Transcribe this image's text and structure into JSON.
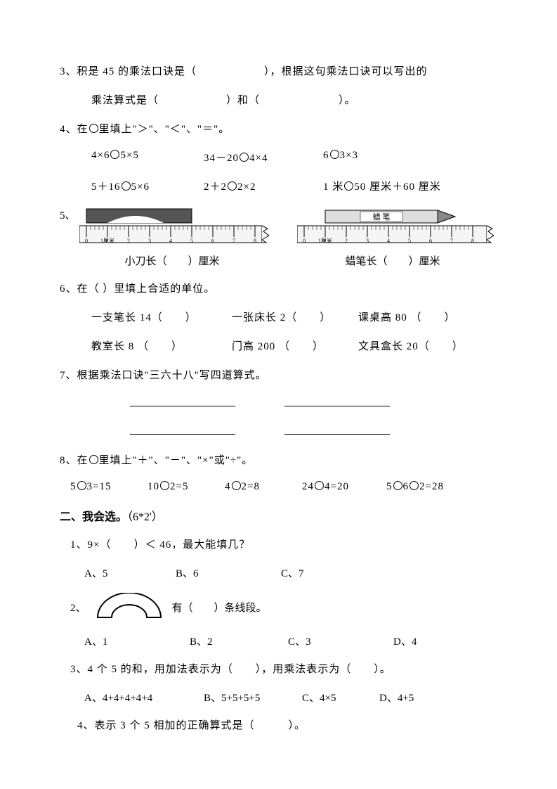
{
  "q3": {
    "text_before": "3、积是 45 的乘法口诀是（",
    "blank1_space": "　　　　　　",
    "text_mid": "），根据这句乘法口诀可以写出的",
    "line2_a": "乘法算式是（",
    "blank2_space": "　　　　　　",
    "line2_b": "）和（",
    "blank3_space": "　　　　　　　",
    "line2_c": "）。"
  },
  "q4": {
    "header": "4、在○里填上\"＞\"、\"＜\"、\"＝\"。",
    "row1": {
      "a": "4×6○5×5",
      "b": "34－20○4×4",
      "c": "6○3×3"
    },
    "row2": {
      "a": "5＋16○5×6",
      "b": "2＋2○2×2",
      "c": "1 米○50 厘米＋60 厘米"
    }
  },
  "q5": {
    "label": "5、",
    "cap1_a": "小刀长（",
    "cap1_b": "）厘米",
    "cap2_a": "蜡笔长（",
    "cap2_b": "）厘米",
    "crayon_label": "蜡 笔"
  },
  "q6": {
    "header": "6、在（   ）里填上合适的单位。",
    "row1": {
      "a": "一支笔长 14（　　）",
      "b": "一张床长 2（　　）",
      "c": "课桌高 80 （　　）"
    },
    "row2": {
      "a": "教室长 8 （　　）",
      "b": "门高 200 （　　）",
      "c": "文具盒长 20（　　）"
    }
  },
  "q7": {
    "header": "7、根据乘法口诀\"三六十八\"写四道算式。"
  },
  "q8": {
    "header": "8、在○里填上\"＋\"、\"－\"、\"×\"或\"÷\"。",
    "items": {
      "a": "5○3=15",
      "b": "10○2=5",
      "c": "4○2=8",
      "d": "24○4=20",
      "e": "5○6○2=28"
    }
  },
  "section2": {
    "title": "二、我会选。",
    "score": "（6*2'）"
  },
  "s2q1": {
    "text": "1、9×（　　）＜ 46，最大能填几？",
    "opts": {
      "a": "A、5",
      "b": "B、6",
      "c": "C、7"
    }
  },
  "s2q2": {
    "prefix": "2、",
    "text_a": "有（　　）条线段。",
    "opts": {
      "a": "A、1",
      "b": "B、2",
      "c": "C、3",
      "d": "D、4"
    }
  },
  "s2q3": {
    "text": "3、4 个 5 的和，用加法表示为（　　），用乘法表示为（　　）。",
    "opts": {
      "a": "A、4+4+4+4+4",
      "b": "B、5+5+5+5",
      "c": "C、4×5",
      "d": "D、4+5"
    }
  },
  "s2q4": {
    "text": "4、表示 3 个 5 相加的正确算式是（　　　）。"
  }
}
